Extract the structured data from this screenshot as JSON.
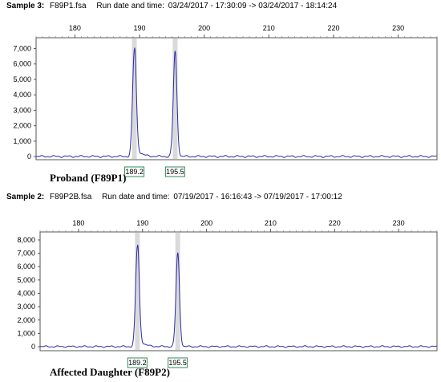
{
  "chart_data": [
    {
      "type": "line",
      "sample_label": "Sample 3:",
      "file": "F89P1.fsa",
      "run_label": "Run date and time:",
      "run_time": "03/24/2017 - 17:30:09 -> 03/24/2017 - 18:14:24",
      "x_ticks": [
        "180",
        "190",
        "200",
        "210",
        "220",
        "230"
      ],
      "xlim": [
        174,
        236
      ],
      "y_ticks": [
        "7,000",
        "6,000",
        "5,000",
        "4,000",
        "3,000",
        "2,000",
        "1,000",
        "0"
      ],
      "ylim": [
        -200,
        7700
      ],
      "peaks": [
        {
          "x": 189.2,
          "height": 6900,
          "label": "189.2"
        },
        {
          "x": 195.5,
          "height": 6800,
          "label": "195.5"
        }
      ],
      "caption": "Proband (F89P1)",
      "line_color": "#2a2aa8"
    },
    {
      "type": "line",
      "sample_label": "Sample 2:",
      "file": "F89P2B.fsa",
      "run_label": "Run date and time:",
      "run_time": "07/19/2017 - 16:16:43 -> 07/19/2017 - 17:00:12",
      "x_ticks": [
        "180",
        "190",
        "200",
        "210",
        "220",
        "230"
      ],
      "xlim": [
        174,
        236
      ],
      "y_ticks": [
        "8,000",
        "7,000",
        "6,000",
        "5,000",
        "4,000",
        "3,000",
        "2,000",
        "1,000",
        "0"
      ],
      "ylim": [
        -300,
        8600
      ],
      "peaks": [
        {
          "x": 189.2,
          "height": 7500,
          "label": "189.2"
        },
        {
          "x": 195.5,
          "height": 7000,
          "label": "195.5"
        }
      ],
      "caption": "Affected Daughter (F89P2)",
      "line_color": "#2a2aa8"
    }
  ]
}
